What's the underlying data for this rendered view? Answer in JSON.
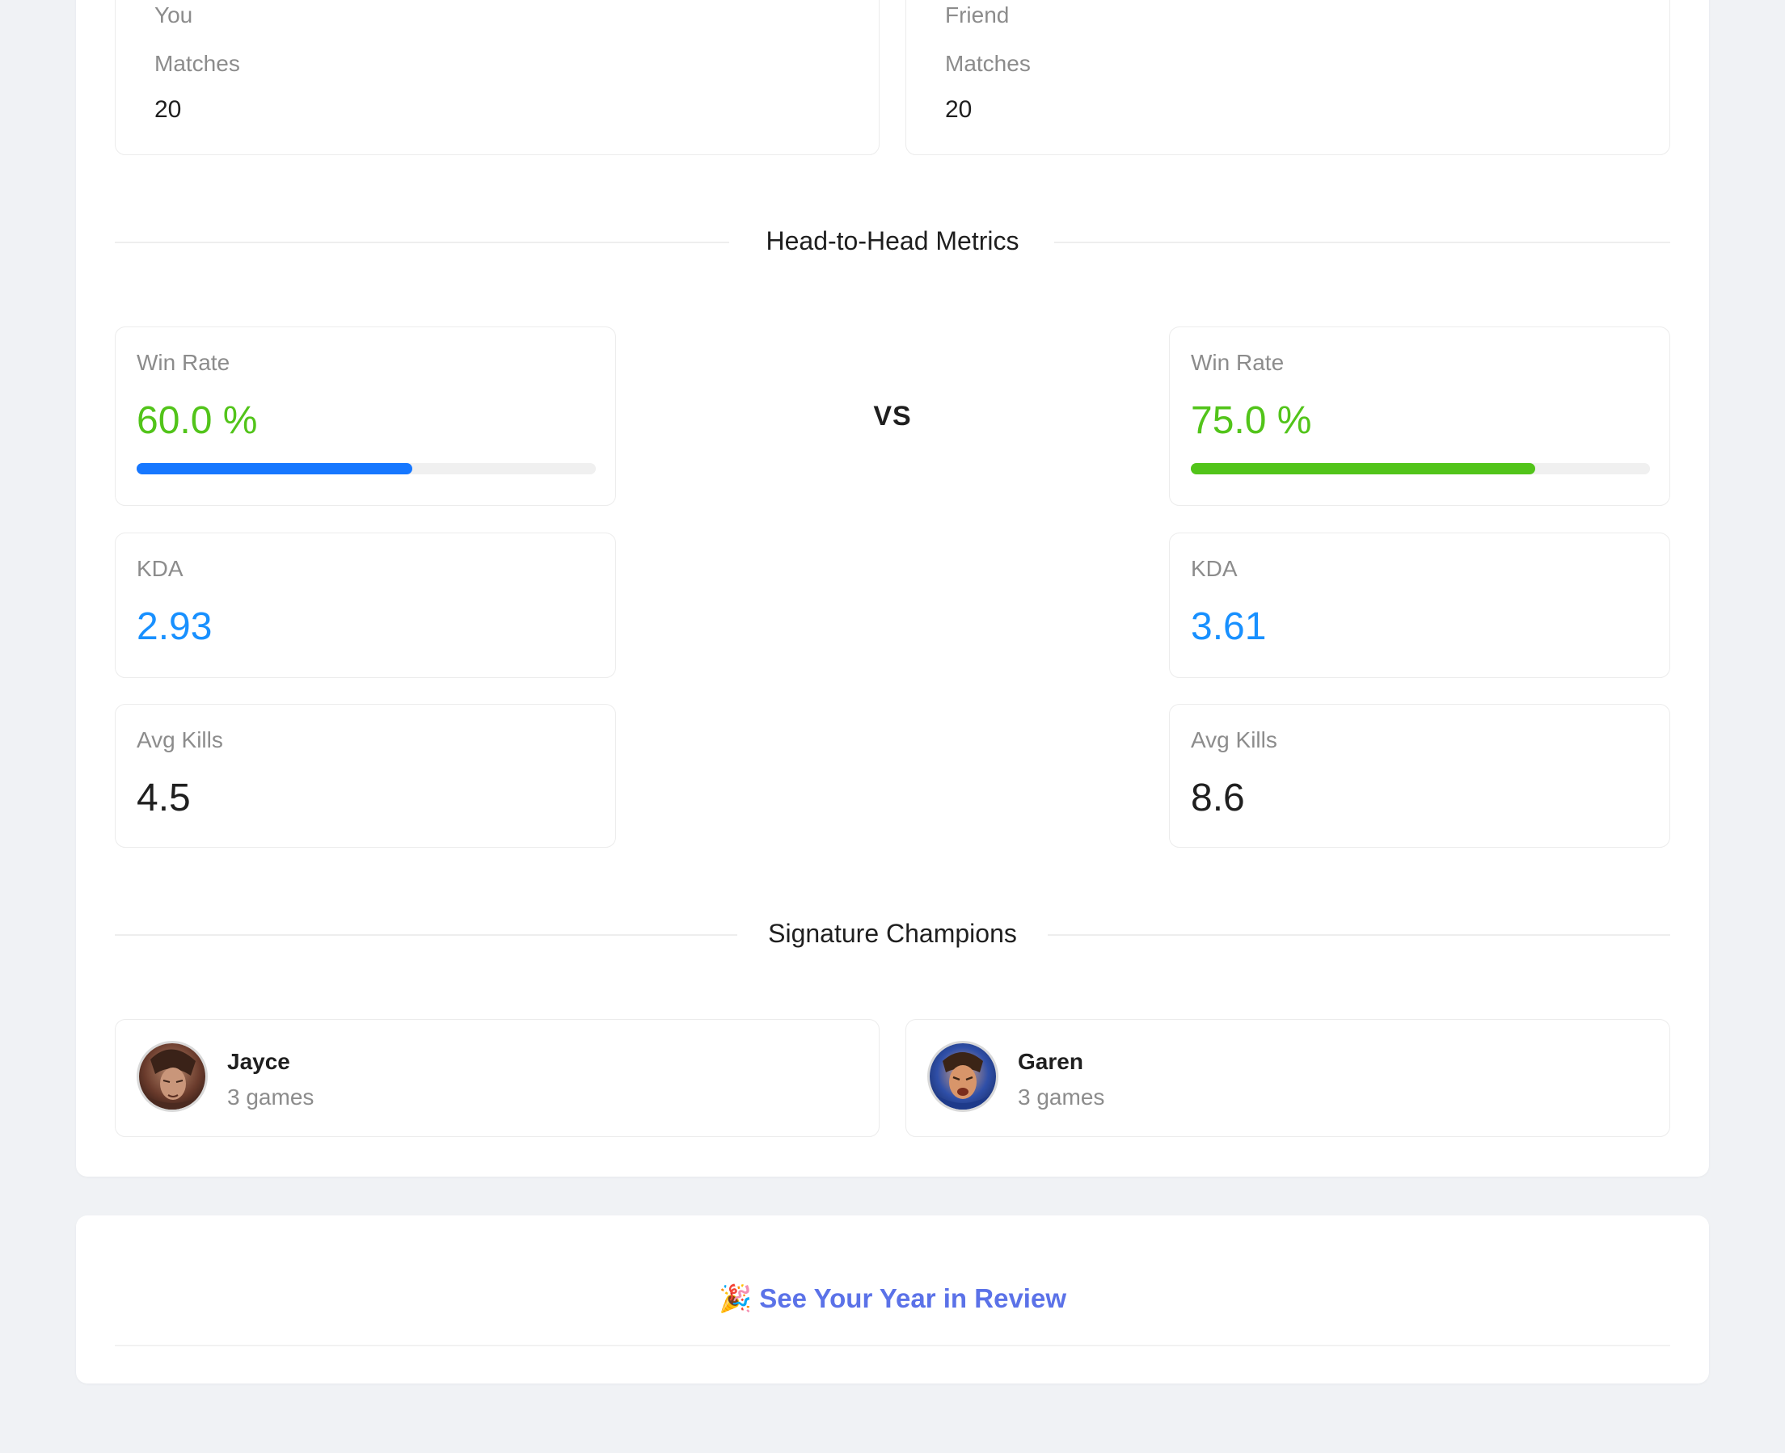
{
  "players": [
    {
      "role": "You",
      "matches_label": "Matches",
      "matches": "20"
    },
    {
      "role": "Friend",
      "matches_label": "Matches",
      "matches": "20"
    }
  ],
  "head_to_head": {
    "title": "Head-to-Head Metrics",
    "vs": "VS",
    "you": {
      "win_rate_label": "Win Rate",
      "win_rate": "60.0 %",
      "win_rate_fraction": 0.6,
      "kda_label": "KDA",
      "kda": "2.93",
      "avg_kills_label": "Avg Kills",
      "avg_kills": "4.5"
    },
    "friend": {
      "win_rate_label": "Win Rate",
      "win_rate": "75.0 %",
      "win_rate_fraction": 0.75,
      "kda_label": "KDA",
      "kda": "3.61",
      "avg_kills_label": "Avg Kills",
      "avg_kills": "8.6"
    }
  },
  "signature": {
    "title": "Signature Champions",
    "you": {
      "name": "Jayce",
      "games": "3 games"
    },
    "friend": {
      "name": "Garen",
      "games": "3 games"
    }
  },
  "cta": {
    "emoji": "🎉",
    "label": "See Your Year in Review"
  },
  "colors": {
    "win_bar_you": "#1677ff",
    "win_bar_friend": "#52c41a",
    "win_text": "#52c41a",
    "kda_text": "#1890ff",
    "cta": "#5b72e8"
  }
}
